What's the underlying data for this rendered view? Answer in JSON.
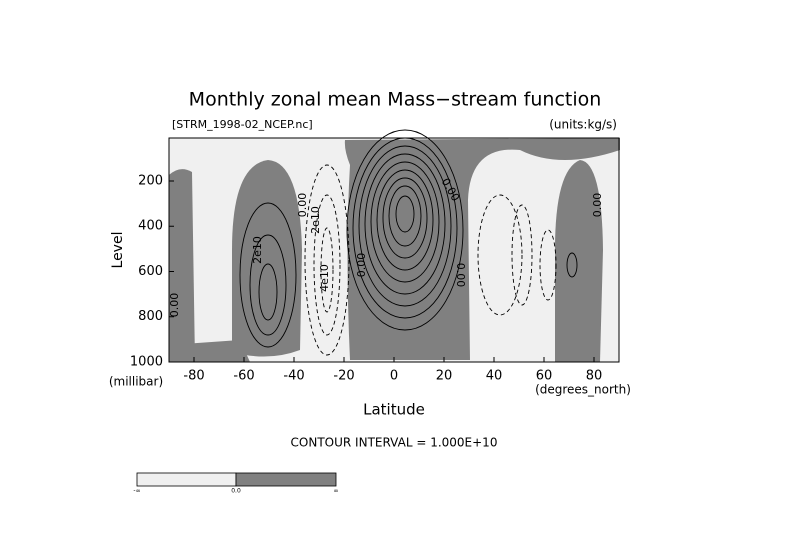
{
  "chart_data": {
    "type": "contour",
    "title": "Monthly zonal mean Mass−stream function",
    "subtitle_left": "[STRM_1998-02_NCEP.nc]",
    "subtitle_right": "(units:kg/s)",
    "xlabel": "Latitude",
    "xunit": "(degrees_north)",
    "ylabel": "Level",
    "yunit": "(millibar)",
    "xlim": [
      -90,
      90
    ],
    "xticks": [
      -80,
      -60,
      -40,
      -20,
      0,
      20,
      40,
      60,
      80
    ],
    "ylim": [
      1000,
      10
    ],
    "yticks": [
      200,
      400,
      600,
      800,
      1000
    ],
    "footer": "CONTOUR INTERVAL = 1.000E+10",
    "contour_labels": [
      "0.00",
      "2e10",
      "0.00",
      "2e10",
      "4e10",
      "0.00",
      "0.00",
      "0.00",
      "0.00"
    ],
    "colorbar_labels": [
      "-∞",
      "0.0",
      "∞"
    ],
    "colors": [
      "#f0f0f0",
      "#808080"
    ]
  }
}
